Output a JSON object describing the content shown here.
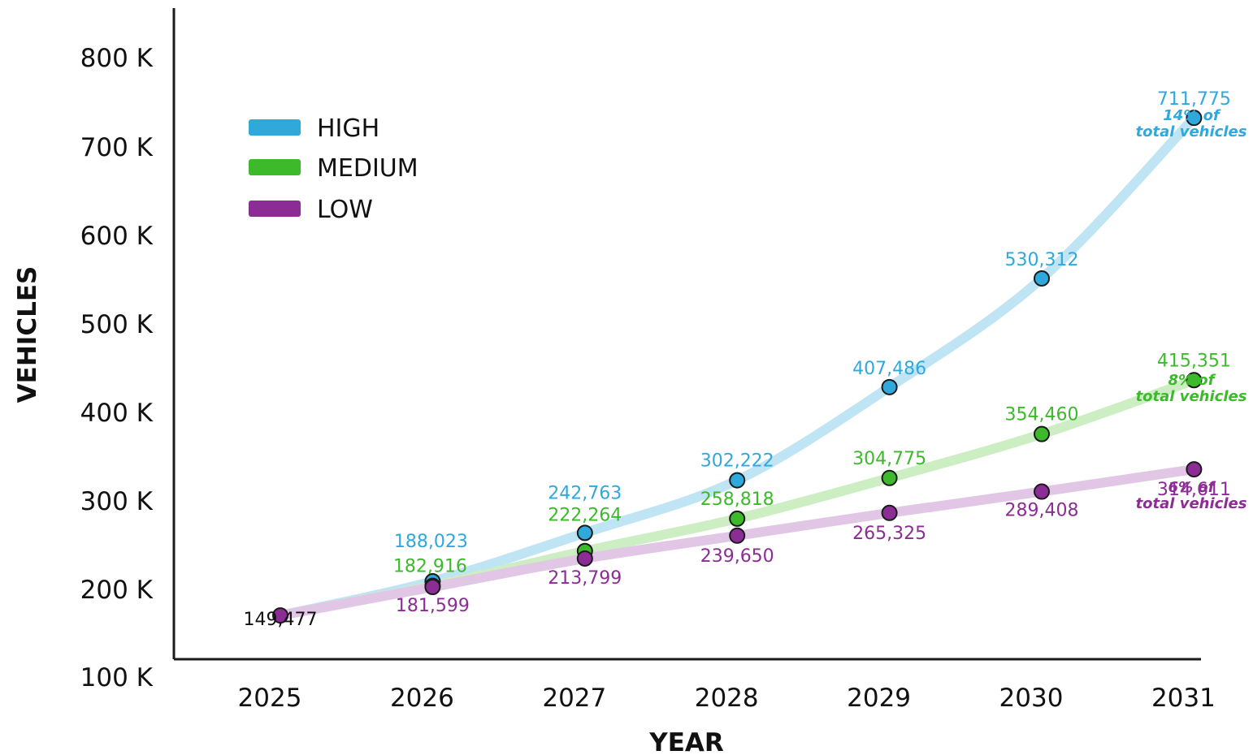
{
  "chart_data": {
    "type": "line",
    "xlabel": "YEAR",
    "ylabel": "VEHICLES",
    "categories": [
      "2025",
      "2026",
      "2027",
      "2028",
      "2029",
      "2030",
      "2031"
    ],
    "y_ticks": [
      "100 K",
      "200 K",
      "300 K",
      "400 K",
      "500 K",
      "600 K",
      "700 K",
      "800 K"
    ],
    "ylim": [
      100000,
      800000
    ],
    "grid": false,
    "legend_position": "top-left",
    "start_label": "149,477",
    "series": [
      {
        "name": "HIGH",
        "color": "#2fa8dc",
        "line_color": "#bfe4f4",
        "values": [
          149477,
          188023,
          242763,
          302222,
          407486,
          530312,
          711775
        ],
        "labels": [
          "149,477",
          "188,023",
          "242,763",
          "302,222",
          "407,486",
          "530,312",
          "711,775"
        ],
        "end_note": [
          "14% of",
          "total vehicles"
        ]
      },
      {
        "name": "MEDIUM",
        "color": "#3db92c",
        "line_color": "#cdeec3",
        "values": [
          149477,
          182916,
          222264,
          258818,
          304775,
          354460,
          415351
        ],
        "labels": [
          "149,477",
          "182,916",
          "222,264",
          "258,818",
          "304,775",
          "354,460",
          "415,351"
        ],
        "end_note": [
          "8% of",
          "total vehicles"
        ]
      },
      {
        "name": "LOW",
        "color": "#8c2c95",
        "line_color": "#e1c7e5",
        "values": [
          149477,
          181599,
          213799,
          239650,
          265325,
          289408,
          314611
        ],
        "labels": [
          "149,477",
          "181,599",
          "213,799",
          "239,650",
          "265,325",
          "289,408",
          "314,611"
        ],
        "end_note": [
          "6% of",
          "total vehicles"
        ]
      }
    ]
  }
}
